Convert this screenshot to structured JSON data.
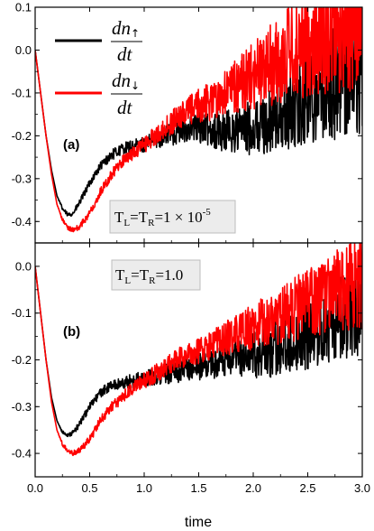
{
  "chart_data": [
    {
      "type": "line",
      "panel_label": "(a)",
      "xlim": [
        0.0,
        3.0
      ],
      "ylim": [
        -0.45,
        0.1
      ],
      "yticks": [
        "0.1",
        "0.0",
        "-0.1",
        "-0.2",
        "-0.3",
        "-0.4"
      ],
      "ytick_values": [
        0.1,
        0.0,
        -0.1,
        -0.2,
        -0.3,
        -0.4
      ],
      "annotation": {
        "T": "T",
        "subL": "L",
        "eq": "=",
        "subR": "R",
        "value": "=1 × 10",
        "exp": "-5"
      },
      "legend": [
        {
          "d": "dn",
          "arrow": "↑",
          "den": "dt",
          "color": "#000000"
        },
        {
          "d": "dn",
          "arrow": "↓",
          "den": "dt",
          "color": "#ff0000"
        }
      ],
      "series": [
        {
          "color": "#000000",
          "x": [
            0,
            0.05,
            0.1,
            0.15,
            0.2,
            0.25,
            0.3,
            0.35,
            0.4,
            0.5,
            0.6,
            0.7,
            0.8,
            0.9,
            1.0,
            1.1,
            1.2,
            1.3,
            1.4,
            1.5,
            1.6,
            1.7,
            1.8,
            1.9,
            2.0,
            2.1,
            2.2,
            2.3,
            2.4,
            2.5,
            2.6,
            2.7,
            2.8,
            2.9,
            3.0
          ],
          "y": [
            0.0,
            -0.1,
            -0.2,
            -0.28,
            -0.34,
            -0.37,
            -0.385,
            -0.38,
            -0.36,
            -0.31,
            -0.27,
            -0.245,
            -0.23,
            -0.225,
            -0.22,
            -0.21,
            -0.2,
            -0.19,
            -0.185,
            -0.18,
            -0.185,
            -0.19,
            -0.19,
            -0.185,
            -0.18,
            -0.175,
            -0.165,
            -0.15,
            -0.13,
            -0.11,
            -0.09,
            -0.08,
            -0.06,
            -0.05,
            -0.05
          ],
          "noise": [
            0,
            0,
            0,
            0,
            0,
            0.005,
            0.005,
            0.006,
            0.008,
            0.008,
            0.01,
            0.012,
            0.014,
            0.016,
            0.018,
            0.02,
            0.025,
            0.03,
            0.03,
            0.035,
            0.04,
            0.05,
            0.055,
            0.06,
            0.065,
            0.07,
            0.08,
            0.09,
            0.1,
            0.11,
            0.12,
            0.13,
            0.15,
            0.16,
            0.17
          ]
        },
        {
          "color": "#ff0000",
          "x": [
            0,
            0.05,
            0.1,
            0.15,
            0.2,
            0.25,
            0.3,
            0.35,
            0.4,
            0.5,
            0.6,
            0.7,
            0.8,
            0.9,
            1.0,
            1.1,
            1.2,
            1.3,
            1.4,
            1.5,
            1.6,
            1.7,
            1.8,
            1.9,
            2.0,
            2.1,
            2.2,
            2.3,
            2.4,
            2.5,
            2.6,
            2.7,
            2.8,
            2.9,
            3.0
          ],
          "y": [
            0.0,
            -0.1,
            -0.2,
            -0.29,
            -0.36,
            -0.395,
            -0.415,
            -0.42,
            -0.415,
            -0.38,
            -0.33,
            -0.29,
            -0.26,
            -0.24,
            -0.22,
            -0.2,
            -0.18,
            -0.16,
            -0.145,
            -0.13,
            -0.12,
            -0.105,
            -0.09,
            -0.075,
            -0.06,
            -0.045,
            -0.03,
            -0.015,
            0.0,
            0.02,
            0.035,
            0.05,
            0.06,
            0.07,
            0.08
          ],
          "noise": [
            0,
            0,
            0,
            0,
            0,
            0.005,
            0.005,
            0.006,
            0.008,
            0.008,
            0.01,
            0.012,
            0.014,
            0.016,
            0.02,
            0.022,
            0.025,
            0.03,
            0.035,
            0.04,
            0.045,
            0.05,
            0.06,
            0.07,
            0.08,
            0.09,
            0.1,
            0.11,
            0.12,
            0.13,
            0.14,
            0.15,
            0.16,
            0.17,
            0.18
          ]
        }
      ]
    },
    {
      "type": "line",
      "panel_label": "(b)",
      "xlim": [
        0.0,
        3.0
      ],
      "ylim": [
        -0.45,
        0.05
      ],
      "yticks": [
        "0.0",
        "-0.1",
        "-0.2",
        "-0.3",
        "-0.4"
      ],
      "ytick_values": [
        0.0,
        -0.1,
        -0.2,
        -0.3,
        -0.4
      ],
      "xticks": [
        "0.0",
        "0.5",
        "1.0",
        "1.5",
        "2.0",
        "2.5",
        "3.0"
      ],
      "xtick_values": [
        0.0,
        0.5,
        1.0,
        1.5,
        2.0,
        2.5,
        3.0
      ],
      "xlabel": "time",
      "annotation": {
        "T": "T",
        "subL": "L",
        "eq": "=",
        "subR": "R",
        "value": "=1.0"
      },
      "series": [
        {
          "color": "#000000",
          "x": [
            0,
            0.05,
            0.1,
            0.15,
            0.2,
            0.25,
            0.3,
            0.35,
            0.4,
            0.5,
            0.6,
            0.7,
            0.8,
            0.9,
            1.0,
            1.1,
            1.2,
            1.3,
            1.4,
            1.5,
            1.6,
            1.7,
            1.8,
            1.9,
            2.0,
            2.1,
            2.2,
            2.3,
            2.4,
            2.5,
            2.6,
            2.7,
            2.8,
            2.9,
            3.0
          ],
          "y": [
            0.0,
            -0.1,
            -0.2,
            -0.28,
            -0.33,
            -0.355,
            -0.36,
            -0.355,
            -0.34,
            -0.3,
            -0.27,
            -0.255,
            -0.25,
            -0.245,
            -0.24,
            -0.235,
            -0.23,
            -0.225,
            -0.22,
            -0.215,
            -0.21,
            -0.205,
            -0.2,
            -0.195,
            -0.19,
            -0.185,
            -0.175,
            -0.165,
            -0.155,
            -0.145,
            -0.135,
            -0.12,
            -0.11,
            -0.1,
            -0.09
          ],
          "noise": [
            0,
            0,
            0,
            0,
            0,
            0.004,
            0.005,
            0.006,
            0.007,
            0.008,
            0.01,
            0.012,
            0.014,
            0.016,
            0.018,
            0.02,
            0.022,
            0.024,
            0.026,
            0.028,
            0.03,
            0.035,
            0.04,
            0.045,
            0.05,
            0.055,
            0.06,
            0.065,
            0.07,
            0.075,
            0.08,
            0.085,
            0.09,
            0.095,
            0.1
          ]
        },
        {
          "color": "#ff0000",
          "x": [
            0,
            0.05,
            0.1,
            0.15,
            0.2,
            0.25,
            0.3,
            0.35,
            0.4,
            0.5,
            0.6,
            0.7,
            0.8,
            0.9,
            1.0,
            1.1,
            1.2,
            1.3,
            1.4,
            1.5,
            1.6,
            1.7,
            1.8,
            1.9,
            2.0,
            2.1,
            2.2,
            2.3,
            2.4,
            2.5,
            2.6,
            2.7,
            2.8,
            2.9,
            3.0
          ],
          "y": [
            0.0,
            -0.1,
            -0.2,
            -0.29,
            -0.35,
            -0.38,
            -0.395,
            -0.4,
            -0.395,
            -0.37,
            -0.33,
            -0.3,
            -0.28,
            -0.26,
            -0.245,
            -0.23,
            -0.215,
            -0.2,
            -0.19,
            -0.18,
            -0.17,
            -0.16,
            -0.15,
            -0.14,
            -0.13,
            -0.12,
            -0.11,
            -0.1,
            -0.09,
            -0.08,
            -0.07,
            -0.06,
            -0.05,
            -0.04,
            -0.035
          ],
          "noise": [
            0,
            0,
            0,
            0,
            0,
            0.004,
            0.005,
            0.006,
            0.007,
            0.008,
            0.01,
            0.012,
            0.014,
            0.016,
            0.018,
            0.02,
            0.022,
            0.024,
            0.026,
            0.028,
            0.03,
            0.035,
            0.04,
            0.045,
            0.05,
            0.055,
            0.06,
            0.065,
            0.07,
            0.075,
            0.08,
            0.085,
            0.09,
            0.095,
            0.1
          ]
        }
      ]
    }
  ]
}
